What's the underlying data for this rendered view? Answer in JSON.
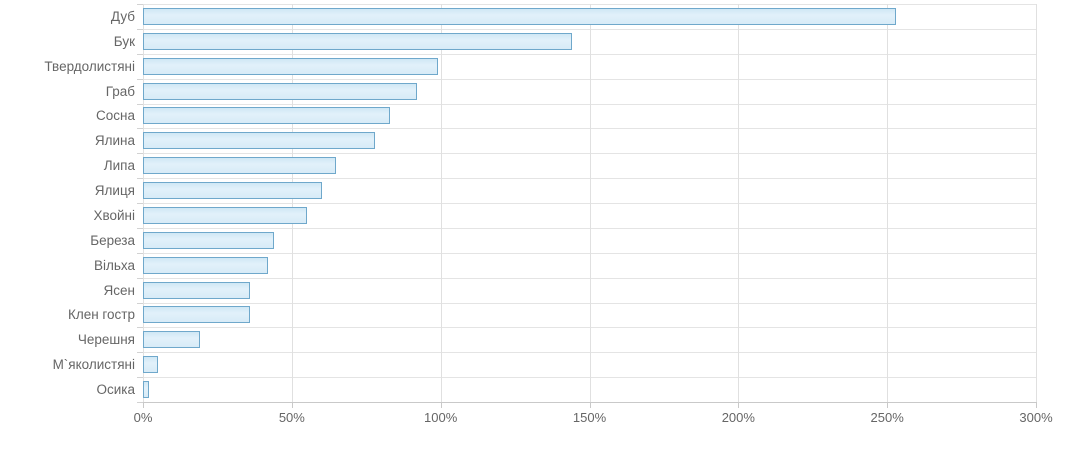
{
  "chart_data": {
    "type": "bar",
    "orientation": "horizontal",
    "title": "",
    "xlabel": "",
    "ylabel": "",
    "categories": [
      "Дуб",
      "Бук",
      "Твердолистяні",
      "Граб",
      "Сосна",
      "Ялина",
      "Липа",
      "Ялиця",
      "Хвойні",
      "Береза",
      "Вільха",
      "Ясен",
      "Клен гостр",
      "Черешня",
      "М`яколистяні",
      "Осика"
    ],
    "values": [
      253,
      144,
      99,
      92,
      83,
      78,
      65,
      60,
      55,
      44,
      42,
      36,
      36,
      19,
      5,
      2
    ],
    "value_unit": "%",
    "xlim": [
      0,
      300
    ],
    "x_tick_labels": [
      "0%",
      "50%",
      "100%",
      "150%",
      "200%",
      "250%",
      "300%"
    ],
    "x_tick_values": [
      0,
      50,
      100,
      150,
      200,
      250,
      300
    ],
    "grid": true,
    "legend": "none",
    "colors": {
      "bar_fill": "#d7ebf7",
      "bar_fill_light": "#e2f1fa",
      "bar_border": "#6fa8cb",
      "gridline": "#e2e2e2",
      "axis_line": "#c9c9c9",
      "label_text": "#666666",
      "background": "#ffffff"
    }
  }
}
